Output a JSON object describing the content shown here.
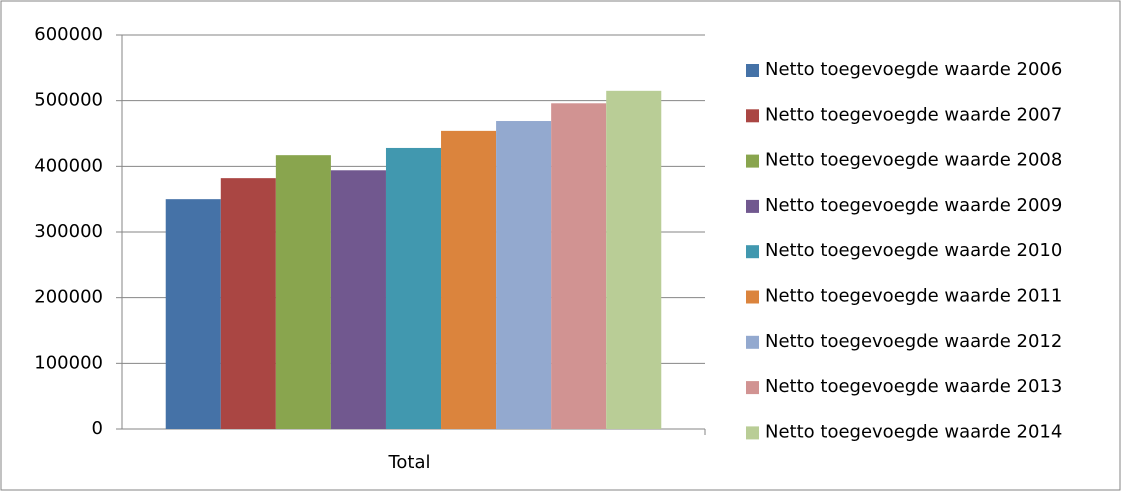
{
  "chart_data": {
    "type": "bar",
    "categories": [
      "Total"
    ],
    "series": [
      {
        "name": "Netto toegevoegde waarde 2006",
        "color": "#4572a7",
        "values": [
          350000
        ]
      },
      {
        "name": "Netto toegevoegde waarde 2007",
        "color": "#aa4643",
        "values": [
          382000
        ]
      },
      {
        "name": "Netto toegevoegde waarde 2008",
        "color": "#89a54e",
        "values": [
          417000
        ]
      },
      {
        "name": "Netto toegevoegde waarde 2009",
        "color": "#71588f",
        "values": [
          394000
        ]
      },
      {
        "name": "Netto toegevoegde waarde 2010",
        "color": "#4198af",
        "values": [
          428000
        ]
      },
      {
        "name": "Netto toegevoegde waarde 2011",
        "color": "#db843d",
        "values": [
          454000
        ]
      },
      {
        "name": "Netto toegevoegde waarde 2012",
        "color": "#93a9cf",
        "values": [
          469000
        ]
      },
      {
        "name": "Netto toegevoegde waarde 2013",
        "color": "#d19392",
        "values": [
          496000
        ]
      },
      {
        "name": "Netto toegevoegde waarde 2014",
        "color": "#b9cd96",
        "values": [
          515000
        ]
      }
    ],
    "ylim": [
      0,
      600000
    ],
    "yticks": [
      0,
      100000,
      200000,
      300000,
      400000,
      500000,
      600000
    ],
    "grid": true,
    "legend": "right"
  }
}
